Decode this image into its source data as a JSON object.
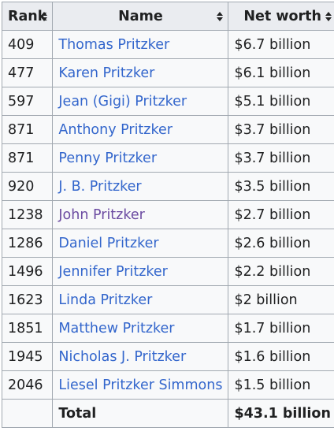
{
  "headers": {
    "rank": "Rank",
    "name": "Name",
    "worth": "Net worth"
  },
  "rows": [
    {
      "rank": "409",
      "name": "Thomas Pritzker",
      "worth": "$6.7 billion"
    },
    {
      "rank": "477",
      "name": "Karen Pritzker",
      "worth": "$6.1 billion"
    },
    {
      "rank": "597",
      "name": "Jean (Gigi) Pritzker",
      "worth": "$5.1 billion"
    },
    {
      "rank": "871",
      "name": "Anthony Pritzker",
      "worth": "$3.7 billion"
    },
    {
      "rank": "871",
      "name": "Penny Pritzker",
      "worth": "$3.7 billion"
    },
    {
      "rank": "920",
      "name": "J. B. Pritzker",
      "worth": "$3.5 billion"
    },
    {
      "rank": "1238",
      "name": "John Pritzker",
      "worth": "$2.7 billion"
    },
    {
      "rank": "1286",
      "name": "Daniel Pritzker",
      "worth": "$2.6 billion"
    },
    {
      "rank": "1496",
      "name": "Jennifer Pritzker",
      "worth": "$2.2 billion"
    },
    {
      "rank": "1623",
      "name": "Linda Pritzker",
      "worth": "$2 billion"
    },
    {
      "rank": "1851",
      "name": "Matthew Pritzker",
      "worth": "$1.7 billion"
    },
    {
      "rank": "1945",
      "name": "Nicholas J. Pritzker",
      "worth": "$1.6 billion"
    },
    {
      "rank": "2046",
      "name": "Liesel Pritzker Simmons",
      "worth": "$1.5 billion"
    }
  ],
  "total": {
    "rank": "",
    "name": "Total",
    "worth": "$43.1 billion"
  },
  "colors": {
    "link": "#3366cc",
    "visited_link": "#6b4ba1",
    "header_bg": "#eaecf0",
    "cell_bg": "#f8f9fa",
    "border": "#a2a9b1"
  },
  "icons": {
    "sort": "sort-icon"
  }
}
